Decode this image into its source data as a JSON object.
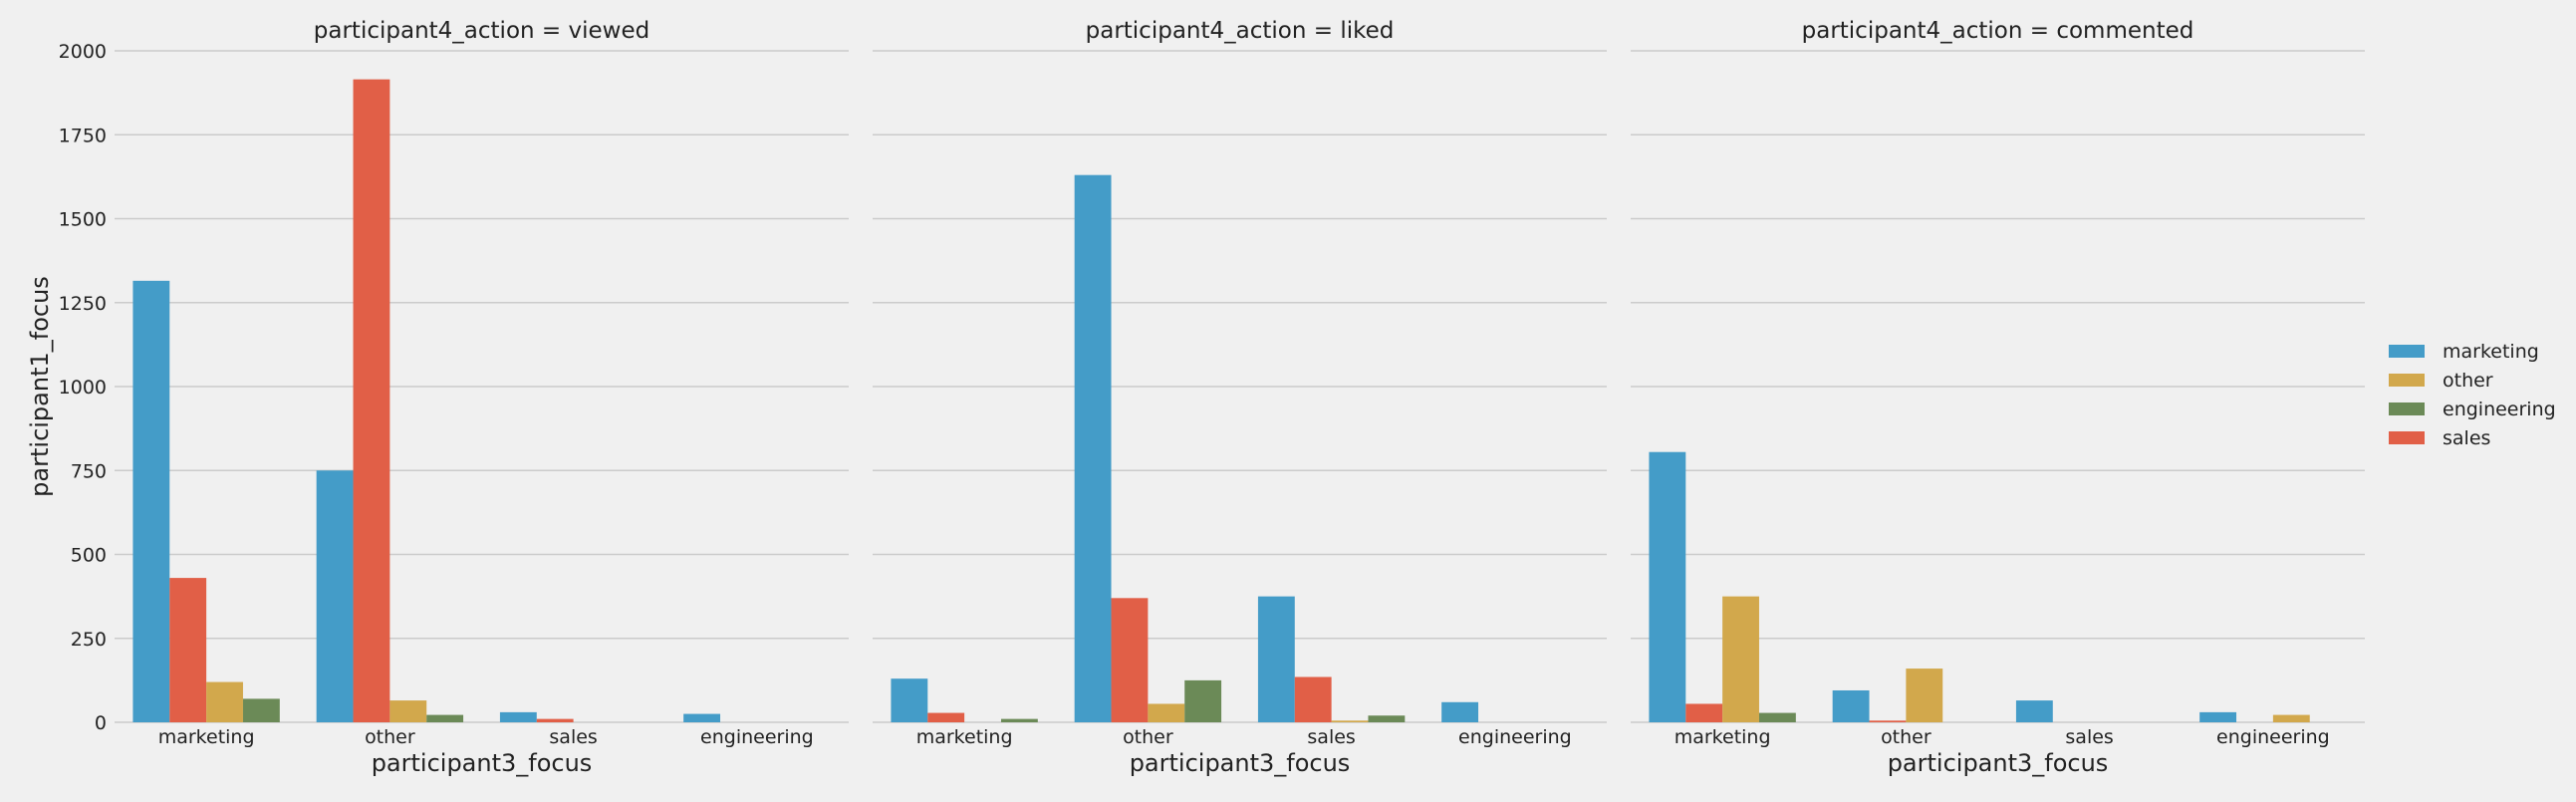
{
  "chart_data": {
    "type": "bar",
    "categories": [
      "marketing",
      "other",
      "sales",
      "engineering"
    ],
    "xlabel": "participant3_focus",
    "ylabel": "participant1_focus",
    "ylim": [
      0,
      2000
    ],
    "yticks": [
      0,
      250,
      500,
      750,
      1000,
      1250,
      1500,
      1750,
      2000
    ],
    "grid": true,
    "legend_position": "right",
    "hue_order": [
      "marketing",
      "sales",
      "other",
      "engineering"
    ],
    "legend_order": [
      "marketing",
      "other",
      "engineering",
      "sales"
    ],
    "colors": {
      "marketing": "#449cc8",
      "other": "#d2a84c",
      "engineering": "#6b8a57",
      "sales": "#e15f47"
    },
    "facets": [
      {
        "title": "participant4_action = viewed",
        "series": [
          {
            "name": "marketing",
            "values": [
              1315,
              750,
              30,
              25
            ]
          },
          {
            "name": "sales",
            "values": [
              430,
              1915,
              10,
              0
            ]
          },
          {
            "name": "other",
            "values": [
              120,
              65,
              0,
              0
            ]
          },
          {
            "name": "engineering",
            "values": [
              70,
              22,
              0,
              0
            ]
          }
        ]
      },
      {
        "title": "participant4_action = liked",
        "series": [
          {
            "name": "marketing",
            "values": [
              130,
              1630,
              375,
              60
            ]
          },
          {
            "name": "sales",
            "values": [
              28,
              370,
              135,
              0
            ]
          },
          {
            "name": "other",
            "values": [
              0,
              55,
              5,
              0
            ]
          },
          {
            "name": "engineering",
            "values": [
              10,
              125,
              20,
              0
            ]
          }
        ]
      },
      {
        "title": "participant4_action = commented",
        "series": [
          {
            "name": "marketing",
            "values": [
              805,
              95,
              65,
              30
            ]
          },
          {
            "name": "sales",
            "values": [
              55,
              5,
              0,
              0
            ]
          },
          {
            "name": "other",
            "values": [
              375,
              160,
              0,
              22
            ]
          },
          {
            "name": "engineering",
            "values": [
              28,
              0,
              0,
              0
            ]
          }
        ]
      }
    ]
  }
}
